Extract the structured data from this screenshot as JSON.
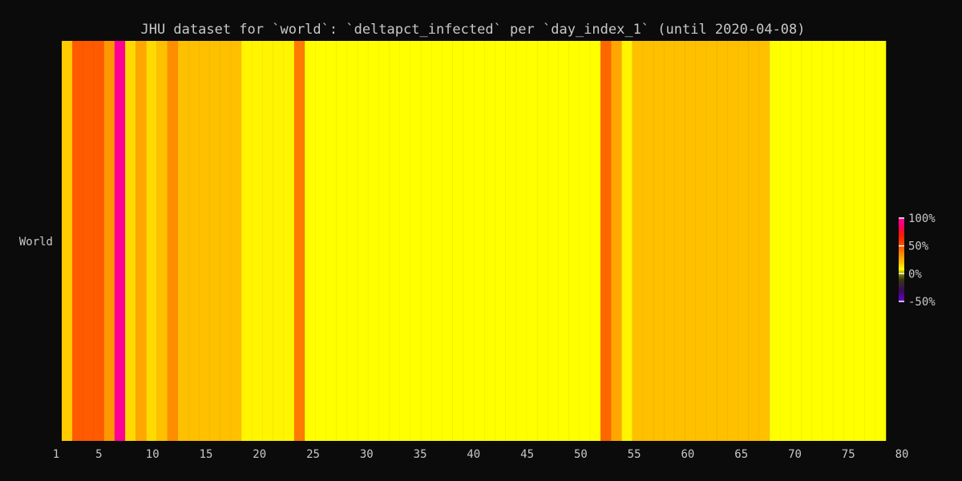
{
  "chart_data": {
    "type": "heatmap",
    "title": "JHU dataset for `world`: `deltapct_infected` per `day_index_1` (until 2020-04-08)",
    "xlabel": "",
    "ylabel": "",
    "row_labels": [
      "World"
    ],
    "x_range": [
      1,
      80
    ],
    "x_ticks": [
      1,
      5,
      10,
      15,
      20,
      25,
      30,
      35,
      40,
      45,
      50,
      55,
      60,
      65,
      70,
      75,
      80
    ],
    "days": [
      1,
      2,
      3,
      4,
      5,
      6,
      7,
      8,
      9,
      10,
      11,
      12,
      13,
      14,
      15,
      16,
      17,
      18,
      19,
      20,
      21,
      22,
      23,
      24,
      25,
      26,
      27,
      28,
      29,
      30,
      31,
      32,
      33,
      34,
      35,
      36,
      37,
      38,
      39,
      40,
      41,
      42,
      43,
      44,
      45,
      46,
      47,
      48,
      49,
      50,
      51,
      52,
      53,
      54,
      55,
      56,
      57,
      58,
      59,
      60,
      61,
      62,
      63,
      64,
      65,
      66,
      67,
      68,
      69,
      70,
      71,
      72,
      73,
      74,
      75,
      76,
      77,
      78
    ],
    "values": [
      18,
      48,
      48,
      48,
      32,
      98,
      15,
      28,
      15,
      20,
      35,
      20,
      20,
      20,
      20,
      20,
      20,
      10,
      10,
      10,
      10,
      10,
      40,
      8,
      8,
      8,
      8,
      8,
      8,
      8,
      8,
      8,
      8,
      8,
      8,
      8,
      8,
      8,
      8,
      8,
      8,
      8,
      8,
      8,
      8,
      8,
      8,
      8,
      8,
      8,
      8,
      45,
      28,
      10,
      20,
      20,
      20,
      20,
      20,
      20,
      20,
      20,
      20,
      20,
      20,
      20,
      20,
      8,
      8,
      8,
      8,
      8,
      8,
      8,
      8,
      8,
      8,
      8
    ],
    "colorbar": {
      "min": -50,
      "max": 100,
      "ticks": [
        {
          "value": 100,
          "label": "100%"
        },
        {
          "value": 50,
          "label": "50%"
        },
        {
          "value": 0,
          "label": "0%"
        },
        {
          "value": -50,
          "label": "-50%"
        }
      ],
      "stops": [
        {
          "value": -50,
          "color": "#6a00d8"
        },
        {
          "value": -30,
          "color": "#3a0a5a"
        },
        {
          "value": -10,
          "color": "#3a3a10"
        },
        {
          "value": 0,
          "color": "#8a8a00"
        },
        {
          "value": 8,
          "color": "#ffff00"
        },
        {
          "value": 20,
          "color": "#ffc000"
        },
        {
          "value": 30,
          "color": "#ffa000"
        },
        {
          "value": 40,
          "color": "#ff7a00"
        },
        {
          "value": 50,
          "color": "#ff5200"
        },
        {
          "value": 70,
          "color": "#ff1a00"
        },
        {
          "value": 85,
          "color": "#ff0060"
        },
        {
          "value": 100,
          "color": "#ff00a0"
        }
      ]
    },
    "grid": false,
    "legend": "colorbar-right"
  }
}
